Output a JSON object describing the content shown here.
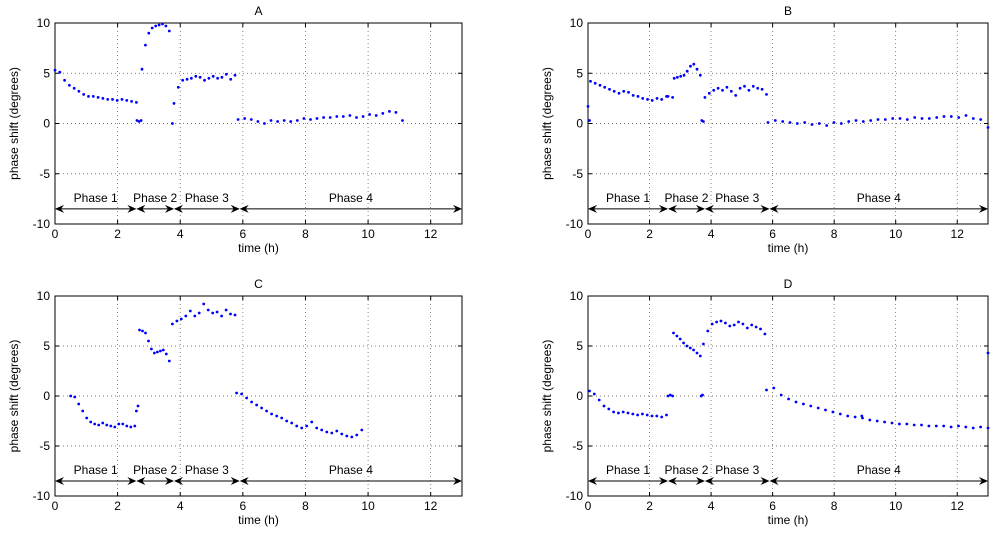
{
  "figure": {
    "background": "#ffffff",
    "point_color": "#0000ff"
  },
  "chart_data": [
    {
      "type": "scatter",
      "title": "A",
      "xlabel": "time (h)",
      "ylabel": "phase shift (degrees)",
      "xlim": [
        0,
        13
      ],
      "ylim": [
        -10,
        10
      ],
      "xticks": [
        0,
        2,
        4,
        6,
        8,
        10,
        12
      ],
      "yticks": [
        -10,
        -5,
        0,
        5,
        10
      ],
      "grid": true,
      "series": [
        {
          "segments": [
            {
              "x_start": 0.0,
              "x_end": 2.6,
              "y": [
                5.3,
                5.1,
                4.3,
                3.8,
                3.5,
                3.2,
                2.9,
                2.7,
                2.7,
                2.6,
                2.5,
                2.4,
                2.4,
                2.3,
                2.4,
                2.3,
                2.2,
                2.1
              ]
            },
            {
              "x_start": 2.62,
              "x_end": 2.75,
              "y": [
                0.3,
                0.2,
                0.3
              ]
            },
            {
              "x_start": 2.78,
              "x_end": 3.65,
              "y": [
                5.4,
                7.8,
                9.0,
                9.5,
                9.7,
                9.8,
                9.9,
                9.7,
                9.2
              ]
            },
            {
              "x_start": 3.75,
              "x_end": 3.75,
              "y": [
                0.0
              ]
            },
            {
              "x_start": 3.8,
              "x_end": 5.75,
              "y": [
                2.0,
                3.6,
                4.3,
                4.4,
                4.5,
                4.7,
                4.6,
                4.3,
                4.5,
                4.7,
                4.5,
                4.6,
                4.9,
                4.4,
                4.8
              ]
            },
            {
              "x_start": 5.85,
              "x_end": 11.1,
              "y": [
                0.4,
                0.5,
                0.4,
                0.2,
                0.0,
                0.3,
                0.2,
                0.3,
                0.2,
                0.3,
                0.5,
                0.4,
                0.5,
                0.6,
                0.6,
                0.7,
                0.7,
                0.8,
                0.6,
                0.7,
                0.9,
                0.8,
                1.0,
                1.2,
                1.1,
                0.3
              ]
            }
          ]
        }
      ]
    },
    {
      "type": "scatter",
      "title": "B",
      "xlabel": "time (h)",
      "ylabel": "phase shift (degrees)",
      "xlim": [
        0,
        13
      ],
      "ylim": [
        -10,
        10
      ],
      "xticks": [
        0,
        2,
        4,
        6,
        8,
        10,
        12
      ],
      "yticks": [
        -10,
        -5,
        0,
        5,
        10
      ],
      "grid": true,
      "series": [
        {
          "segments": [
            {
              "x_start": 0.0,
              "x_end": 0.05,
              "y": [
                1.7,
                0.3
              ]
            },
            {
              "x_start": 0.08,
              "x_end": 2.55,
              "y": [
                4.2,
                4.0,
                3.8,
                3.6,
                3.4,
                3.2,
                3.0,
                3.2,
                3.1,
                2.8,
                2.7,
                2.5,
                2.4,
                2.3,
                2.5,
                2.4,
                2.7
              ]
            },
            {
              "x_start": 2.6,
              "x_end": 2.75,
              "y": [
                2.7,
                2.6
              ]
            },
            {
              "x_start": 2.8,
              "x_end": 3.65,
              "y": [
                4.5,
                4.6,
                4.7,
                4.8,
                5.2,
                5.7,
                5.9,
                5.4,
                4.8
              ]
            },
            {
              "x_start": 3.7,
              "x_end": 3.75,
              "y": [
                0.3,
                0.2
              ]
            },
            {
              "x_start": 3.8,
              "x_end": 5.8,
              "y": [
                2.6,
                3.0,
                3.3,
                3.5,
                3.3,
                3.6,
                3.2,
                2.8,
                3.5,
                3.7,
                3.3,
                3.7,
                3.5,
                3.4,
                2.9
              ]
            },
            {
              "x_start": 5.85,
              "x_end": 13.0,
              "y": [
                0.1,
                0.3,
                0.2,
                0.1,
                0.0,
                0.1,
                -0.1,
                0.0,
                -0.2,
                0.1,
                0.0,
                0.2,
                0.3,
                0.2,
                0.3,
                0.4,
                0.4,
                0.5,
                0.5,
                0.4,
                0.6,
                0.5,
                0.5,
                0.6,
                0.7,
                0.7,
                0.6,
                0.8,
                0.5,
                0.4,
                -0.4
              ]
            }
          ]
        }
      ]
    },
    {
      "type": "scatter",
      "title": "C",
      "xlabel": "time (h)",
      "ylabel": "phase shift (degrees)",
      "xlim": [
        0,
        13
      ],
      "ylim": [
        -10,
        10
      ],
      "xticks": [
        0,
        2,
        4,
        6,
        8,
        10,
        12
      ],
      "yticks": [
        -10,
        -5,
        0,
        5,
        10
      ],
      "grid": true,
      "series": [
        {
          "segments": [
            {
              "x_start": 0.5,
              "x_end": 2.55,
              "y": [
                0.0,
                -0.1,
                -0.8,
                -1.5,
                -2.2,
                -2.6,
                -2.8,
                -2.9,
                -2.7,
                -2.9,
                -3.0,
                -3.1,
                -2.8,
                -2.8,
                -3.0,
                -3.1,
                -3.0
              ]
            },
            {
              "x_start": 2.6,
              "x_end": 2.65,
              "y": [
                -1.5,
                -1.0
              ]
            },
            {
              "x_start": 2.7,
              "x_end": 3.65,
              "y": [
                6.6,
                6.5,
                6.3,
                5.5,
                4.7,
                4.3,
                4.4,
                4.5,
                4.6,
                4.2,
                3.5
              ]
            },
            {
              "x_start": 3.75,
              "x_end": 5.75,
              "y": [
                7.2,
                7.5,
                7.7,
                8.0,
                8.5,
                8.0,
                8.3,
                9.2,
                8.6,
                8.3,
                8.4,
                8.0,
                8.6,
                8.2,
                8.1
              ]
            },
            {
              "x_start": 5.8,
              "x_end": 9.8,
              "y": [
                0.3,
                0.2,
                -0.2,
                -0.6,
                -0.9,
                -1.2,
                -1.5,
                -1.8,
                -2.0,
                -2.2,
                -2.5,
                -2.7,
                -3.0,
                -3.2,
                -3.0,
                -2.6,
                -3.2,
                -3.4,
                -3.6,
                -3.7,
                -3.5,
                -3.8,
                -4.0,
                -4.1,
                -3.9,
                -3.4
              ]
            }
          ]
        }
      ]
    },
    {
      "type": "scatter",
      "title": "D",
      "xlabel": "time (h)",
      "ylabel": "phase shift (degrees)",
      "xlim": [
        0,
        13
      ],
      "ylim": [
        -10,
        10
      ],
      "xticks": [
        0,
        2,
        4,
        6,
        8,
        10,
        12
      ],
      "yticks": [
        -10,
        -5,
        0,
        5,
        10
      ],
      "grid": true,
      "series": [
        {
          "segments": [
            {
              "x_start": 0.05,
              "x_end": 2.55,
              "y": [
                0.5,
                0.2,
                -0.4,
                -1.0,
                -1.3,
                -1.6,
                -1.7,
                -1.6,
                -1.7,
                -1.8,
                -1.9,
                -1.8,
                -1.9,
                -2.0,
                -2.0,
                -2.1,
                -1.9
              ]
            },
            {
              "x_start": 2.6,
              "x_end": 2.75,
              "y": [
                0.0,
                0.1,
                0.0
              ]
            },
            {
              "x_start": 2.78,
              "x_end": 3.65,
              "y": [
                6.3,
                6.0,
                5.7,
                5.3,
                5.0,
                4.8,
                4.6,
                4.3,
                4.0
              ]
            },
            {
              "x_start": 3.68,
              "x_end": 3.72,
              "y": [
                0.0,
                0.1
              ]
            },
            {
              "x_start": 3.75,
              "x_end": 5.75,
              "y": [
                5.2,
                6.5,
                7.2,
                7.4,
                7.5,
                7.3,
                7.0,
                7.1,
                7.4,
                7.2,
                6.8,
                7.1,
                6.9,
                6.7,
                6.2
              ]
            },
            {
              "x_start": 5.8,
              "x_end": 13.0,
              "y": [
                0.6,
                0.8,
                0.1,
                -0.3,
                -0.6,
                -0.8,
                -1.0,
                -1.2,
                -1.4,
                -1.6,
                -1.8,
                -2.0,
                -2.1,
                -2.2,
                -2.4,
                -2.5,
                -2.6,
                -2.7,
                -2.8,
                -2.8,
                -2.9,
                -2.9,
                -3.0,
                -3.0,
                -3.0,
                -3.1,
                -3.0,
                -3.1,
                -3.2,
                -3.1,
                -3.2
              ]
            },
            {
              "x_start": 8.9,
              "x_end": 8.9,
              "y": [
                -2.0
              ]
            },
            {
              "x_start": 13.0,
              "x_end": 13.0,
              "y": [
                4.3
              ]
            }
          ]
        }
      ]
    }
  ],
  "phases": [
    {
      "label": "Phase 1",
      "start": 0,
      "end": 2.6
    },
    {
      "label": "Phase 2",
      "start": 2.6,
      "end": 3.8
    },
    {
      "label": "Phase 3",
      "start": 3.8,
      "end": 5.9
    },
    {
      "label": "Phase 4",
      "start": 5.9,
      "end": 13
    }
  ],
  "phase_arrow_y": -8.5
}
